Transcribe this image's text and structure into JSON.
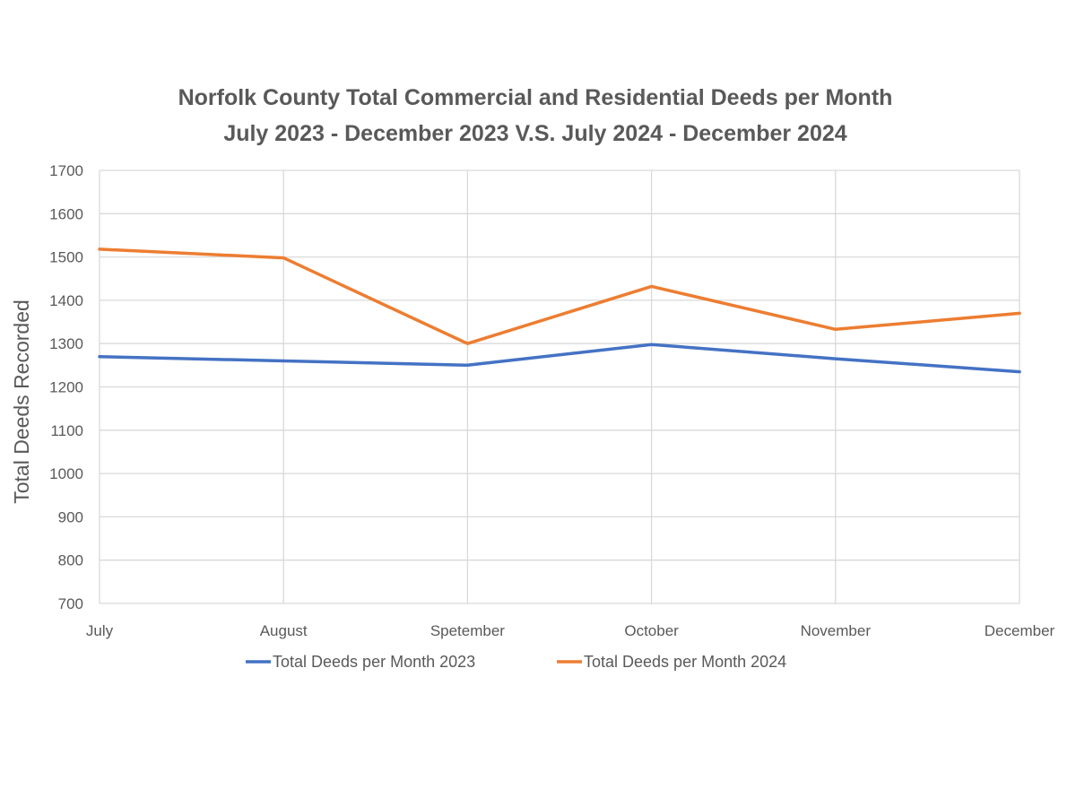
{
  "chart_data": {
    "type": "line",
    "title_line1": "Norfolk County Total Commercial and Residential Deeds per Month",
    "title_line2": "July 2023 - December 2023 V.S. July 2024 - December 2024",
    "xlabel": "",
    "ylabel": "Total Deeds Recorded",
    "categories": [
      "July",
      "August",
      "Spetember",
      "October",
      "November",
      "December"
    ],
    "yticks": [
      "700",
      "800",
      "900",
      "1000",
      "1100",
      "1200",
      "1300",
      "1400",
      "1500",
      "1600",
      "1700"
    ],
    "ylim": [
      700,
      1700
    ],
    "grid": true,
    "legend_position": "bottom",
    "series": [
      {
        "name": "Total Deeds per Month 2023",
        "color": "#4472c4",
        "values": [
          1270,
          1260,
          1250,
          1298,
          1265,
          1235
        ]
      },
      {
        "name": "Total Deeds per Month 2024",
        "color": "#ed7d31",
        "values": [
          1518,
          1498,
          1300,
          1432,
          1333,
          1370
        ]
      }
    ]
  }
}
